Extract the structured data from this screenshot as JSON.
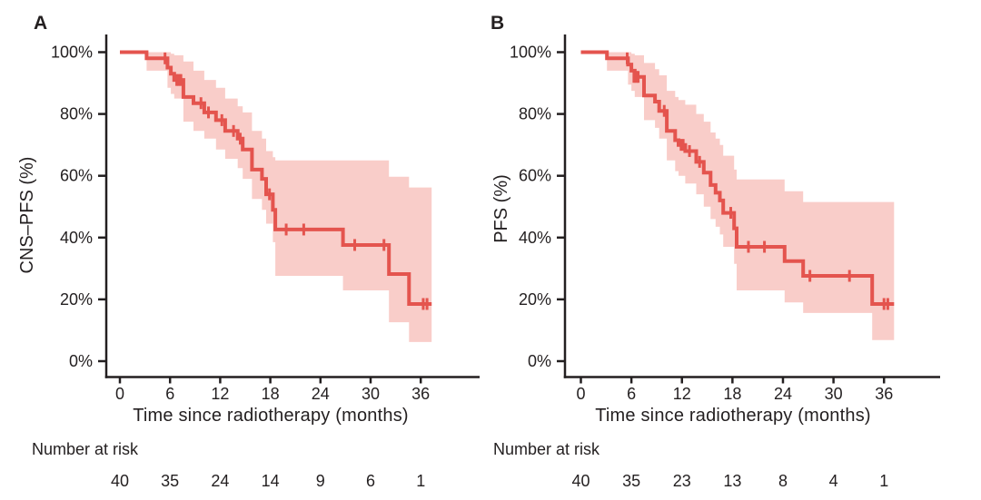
{
  "figure": {
    "background": "#ffffff",
    "curve_color": "#e4544e",
    "band_color": "#f9cdc9",
    "axis_color": "#231f20",
    "text_color": "#231f20"
  },
  "chart_data": [
    {
      "type": "line",
      "subtype": "kaplan-meier-step",
      "panel_label": "A",
      "ylabel": "CNS–PFS (%)",
      "xlabel": "Time since radiotherapy (months)",
      "x_ticks": [
        0,
        6,
        12,
        18,
        24,
        30,
        36
      ],
      "y_ticks_percent": [
        0,
        20,
        40,
        60,
        80,
        100
      ],
      "xlim": [
        0,
        39
      ],
      "ylim": [
        0,
        100
      ],
      "grid": false,
      "legend": "none",
      "risk_heading": "Number at risk",
      "number_at_risk": [
        40,
        35,
        24,
        14,
        9,
        6,
        1
      ],
      "curve_end_t": 37.3,
      "steps_format": [
        "time_months",
        "survival_pct",
        "ci_upper_pct",
        "ci_lower_pct"
      ],
      "steps": [
        [
          0,
          100,
          100,
          100
        ],
        [
          3.2,
          98,
          100,
          94
        ],
        [
          5.7,
          95,
          100,
          88.5
        ],
        [
          6.1,
          93,
          99.5,
          86.5
        ],
        [
          6.5,
          91,
          99,
          85
        ],
        [
          7.6,
          85.5,
          97,
          77.5
        ],
        [
          8.8,
          83.5,
          94,
          74.5
        ],
        [
          10.1,
          80.5,
          91,
          72
        ],
        [
          11.5,
          78,
          88.5,
          68.5
        ],
        [
          12.6,
          74.5,
          85,
          65.5
        ],
        [
          14.1,
          72,
          82.5,
          62.5
        ],
        [
          14.7,
          68.5,
          80.5,
          59
        ],
        [
          15.8,
          62,
          74.5,
          52.5
        ],
        [
          17.0,
          59,
          72,
          49
        ],
        [
          17.5,
          54,
          68,
          44.5
        ],
        [
          18.3,
          49,
          66,
          38.5
        ],
        [
          18.6,
          42.6,
          65,
          27.6
        ],
        [
          26.7,
          37.6,
          65,
          22.9
        ],
        [
          32.2,
          28.2,
          59.7,
          12.6
        ],
        [
          34.6,
          18.5,
          56.2,
          6.2
        ]
      ],
      "censors": [
        [
          5.4,
          98
        ],
        [
          6.8,
          91
        ],
        [
          7.05,
          91
        ],
        [
          7.3,
          91
        ],
        [
          9.7,
          83.5
        ],
        [
          10.6,
          80.5
        ],
        [
          12.2,
          78
        ],
        [
          13.6,
          74.5
        ],
        [
          14.4,
          72
        ],
        [
          17.9,
          54
        ],
        [
          19.9,
          42.6
        ],
        [
          22.0,
          42.6
        ],
        [
          28.1,
          37.6
        ],
        [
          31.6,
          37.6
        ],
        [
          36.3,
          18.5
        ],
        [
          36.75,
          18.5
        ]
      ]
    },
    {
      "type": "line",
      "subtype": "kaplan-meier-step",
      "panel_label": "B",
      "ylabel": "PFS (%)",
      "xlabel": "Time since radiotherapy (months)",
      "x_ticks": [
        0,
        6,
        12,
        18,
        24,
        30,
        36
      ],
      "y_ticks_percent": [
        0,
        20,
        40,
        60,
        80,
        100
      ],
      "xlim": [
        0,
        39
      ],
      "ylim": [
        0,
        100
      ],
      "grid": false,
      "legend": "none",
      "risk_heading": "Number at risk",
      "number_at_risk": [
        40,
        35,
        23,
        13,
        8,
        4,
        1
      ],
      "curve_end_t": 37.2,
      "steps_format": [
        "time_months",
        "survival_pct",
        "ci_upper_pct",
        "ci_lower_pct"
      ],
      "steps": [
        [
          0,
          100,
          100,
          100
        ],
        [
          3.1,
          98,
          100,
          94
        ],
        [
          5.6,
          96,
          100,
          89.5
        ],
        [
          6.0,
          94,
          99.5,
          87.5
        ],
        [
          6.4,
          92,
          99,
          85.5
        ],
        [
          7.5,
          86,
          96.5,
          78
        ],
        [
          8.8,
          84,
          94.5,
          75.5
        ],
        [
          9.3,
          81,
          92.5,
          72
        ],
        [
          10.2,
          74.5,
          87.5,
          65
        ],
        [
          11.2,
          71.5,
          85.5,
          61.5
        ],
        [
          11.6,
          70,
          84.5,
          60
        ],
        [
          12.4,
          68,
          83,
          57.5
        ],
        [
          13.7,
          64.5,
          80,
          54
        ],
        [
          14.6,
          61,
          77.5,
          50
        ],
        [
          15.4,
          57,
          74,
          46
        ],
        [
          16.0,
          54.5,
          72,
          43.5
        ],
        [
          16.5,
          52,
          70,
          41
        ],
        [
          16.9,
          48,
          66.5,
          37
        ],
        [
          18.2,
          43,
          62,
          31.5
        ],
        [
          18.5,
          37,
          58.8,
          22.9
        ],
        [
          24.2,
          32.4,
          55,
          19
        ],
        [
          26.4,
          27.6,
          51.5,
          15.6
        ],
        [
          34.6,
          18.5,
          51.5,
          6.8
        ]
      ],
      "censors": [
        [
          5.5,
          98
        ],
        [
          6.3,
          92
        ],
        [
          6.55,
          92
        ],
        [
          6.8,
          92
        ],
        [
          9.9,
          81
        ],
        [
          11.9,
          70
        ],
        [
          12.15,
          70
        ],
        [
          12.9,
          68
        ],
        [
          14.1,
          64.5
        ],
        [
          17.8,
          48
        ],
        [
          19.9,
          37
        ],
        [
          21.8,
          37
        ],
        [
          27.2,
          27.6
        ],
        [
          31.9,
          27.6
        ],
        [
          36.0,
          18.5
        ],
        [
          36.45,
          18.5
        ]
      ]
    }
  ]
}
